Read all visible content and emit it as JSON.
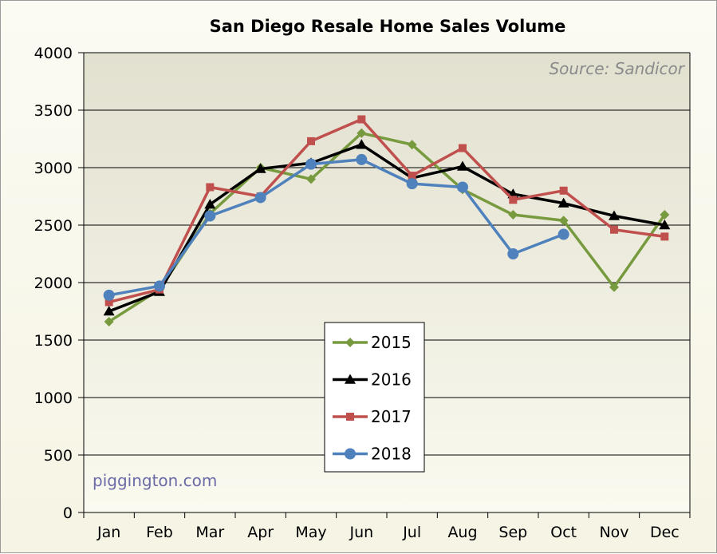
{
  "chart_data": {
    "type": "line",
    "title": "San Diego Resale Home Sales Volume",
    "source_note": "Source: Sandicor",
    "watermark": "piggington.com",
    "xlabel": "",
    "ylabel": "",
    "categories": [
      "Jan",
      "Feb",
      "Mar",
      "Apr",
      "May",
      "Jun",
      "Jul",
      "Aug",
      "Sep",
      "Oct",
      "Nov",
      "Dec"
    ],
    "ylim": [
      0,
      4000
    ],
    "yticks": [
      0,
      500,
      1000,
      1500,
      2000,
      2500,
      3000,
      3500,
      4000
    ],
    "grid": true,
    "legend_position": "center",
    "series": [
      {
        "name": "2015",
        "color": "#779a3e",
        "marker": "diamond",
        "values": [
          1660,
          1940,
          2600,
          3000,
          2900,
          3300,
          3200,
          2810,
          2590,
          2540,
          1960,
          2590
        ]
      },
      {
        "name": "2016",
        "color": "#000000",
        "marker": "triangle",
        "values": [
          1750,
          1920,
          2680,
          2990,
          3040,
          3200,
          2910,
          3010,
          2770,
          2690,
          2580,
          2500
        ]
      },
      {
        "name": "2017",
        "color": "#c0504d",
        "marker": "square",
        "values": [
          1830,
          1940,
          2830,
          2750,
          3230,
          3420,
          2930,
          3170,
          2720,
          2800,
          2460,
          2400
        ]
      },
      {
        "name": "2018",
        "color": "#4f81bd",
        "marker": "circle",
        "values": [
          1890,
          1970,
          2580,
          2740,
          3030,
          3070,
          2860,
          2830,
          2250,
          2420,
          null,
          null
        ]
      }
    ]
  }
}
